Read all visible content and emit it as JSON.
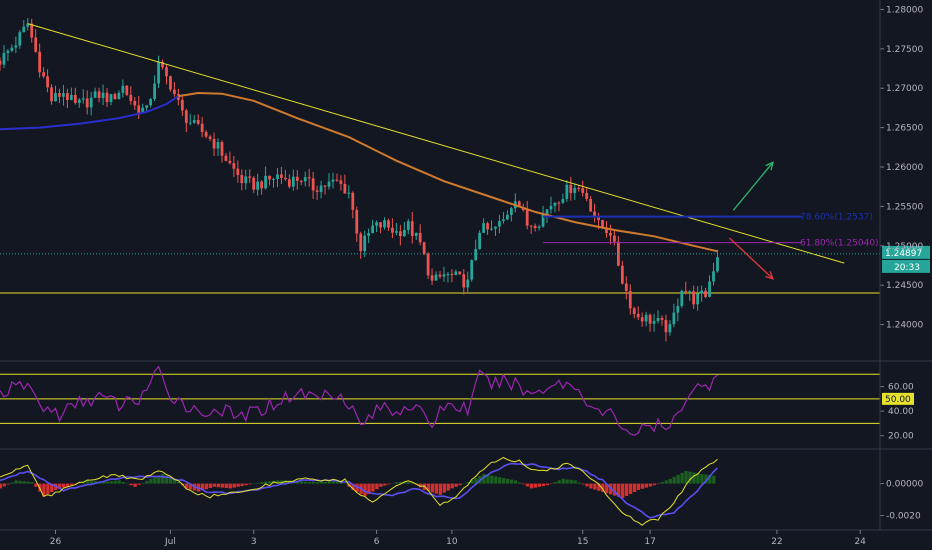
{
  "chart_data": [
    {
      "panel": "price",
      "type": "candlestick",
      "y_ticks": [
        "1.28000",
        "1.27500",
        "1.27000",
        "1.26500",
        "1.26000",
        "1.25500",
        "1.25000",
        "1.24500",
        "1.24000"
      ],
      "y_tick_values": [
        1.28,
        1.275,
        1.27,
        1.265,
        1.26,
        1.255,
        1.25,
        1.245,
        1.24
      ],
      "ylim": [
        1.2355,
        1.2812
      ],
      "x_ticks": [
        "26",
        "Jul",
        "3",
        "6",
        "10",
        "15",
        "17",
        "22",
        "24"
      ],
      "x_tick_index": [
        14,
        43,
        64,
        95,
        114,
        147,
        164,
        196,
        217
      ],
      "x_index_range": [
        0,
        222
      ],
      "last_price": "1.24897",
      "last_price_value": 1.24897,
      "countdown": "20:33",
      "close_path": [
        [
          0,
          1.2735
        ],
        [
          4,
          1.2758
        ],
        [
          7,
          1.2782
        ],
        [
          10,
          1.2728
        ],
        [
          13,
          1.2685
        ],
        [
          16,
          1.2695
        ],
        [
          19,
          1.2678
        ],
        [
          22,
          1.2683
        ],
        [
          25,
          1.2692
        ],
        [
          28,
          1.2686
        ],
        [
          31,
          1.2702
        ],
        [
          34,
          1.2677
        ],
        [
          37,
          1.2671
        ],
        [
          40,
          1.2729
        ],
        [
          43,
          1.2705
        ],
        [
          46,
          1.2668
        ],
        [
          49,
          1.2652
        ],
        [
          52,
          1.2641
        ],
        [
          55,
          1.2625
        ],
        [
          58,
          1.2603
        ],
        [
          61,
          1.2583
        ],
        [
          64,
          1.2577
        ],
        [
          67,
          1.2581
        ],
        [
          70,
          1.2589
        ],
        [
          73,
          1.2583
        ],
        [
          76,
          1.2586
        ],
        [
          79,
          1.2574
        ],
        [
          82,
          1.2577
        ],
        [
          85,
          1.2581
        ],
        [
          88,
          1.2568
        ],
        [
          91,
          1.2497
        ],
        [
          94,
          1.2523
        ],
        [
          97,
          1.2527
        ],
        [
          100,
          1.2517
        ],
        [
          103,
          1.2525
        ],
        [
          106,
          1.2502
        ],
        [
          109,
          1.2453
        ],
        [
          112,
          1.2463
        ],
        [
          115,
          1.246
        ],
        [
          118,
          1.2452
        ],
        [
          121,
          1.2522
        ],
        [
          124,
          1.2518
        ],
        [
          127,
          1.2532
        ],
        [
          130,
          1.2563
        ],
        [
          133,
          1.2527
        ],
        [
          136,
          1.2532
        ],
        [
          139,
          1.2553
        ],
        [
          142,
          1.2566
        ],
        [
          145,
          1.2578
        ],
        [
          148,
          1.2562
        ],
        [
          151,
          1.2526
        ],
        [
          154,
          1.2518
        ],
        [
          157,
          1.2457
        ],
        [
          160,
          1.2413
        ],
        [
          163,
          1.2408
        ],
        [
          166,
          1.2402
        ],
        [
          169,
          1.2393
        ],
        [
          172,
          1.2448
        ],
        [
          175,
          1.2432
        ],
        [
          178,
          1.2438
        ],
        [
          181,
          1.2489
        ]
      ],
      "overlays": [
        {
          "name": "ma_blue",
          "color": "#2a2ecd",
          "points": [
            [
              0,
              1.2648
            ],
            [
              10,
              1.265
            ],
            [
              20,
              1.2655
            ],
            [
              30,
              1.2662
            ],
            [
              37,
              1.267
            ],
            [
              42,
              1.268
            ],
            [
              45,
              1.269
            ]
          ]
        },
        {
          "name": "ma_orange",
          "color": "#d07a2e",
          "points": [
            [
              45,
              1.269
            ],
            [
              50,
              1.2694
            ],
            [
              56,
              1.2693
            ],
            [
              64,
              1.2684
            ],
            [
              75,
              1.2662
            ],
            [
              88,
              1.2638
            ],
            [
              100,
              1.2608
            ],
            [
              112,
              1.2582
            ],
            [
              125,
              1.256
            ],
            [
              135,
              1.2543
            ],
            [
              145,
              1.253
            ],
            [
              155,
              1.252
            ],
            [
              165,
              1.2512
            ],
            [
              175,
              1.25
            ],
            [
              181,
              1.2493
            ]
          ]
        },
        {
          "name": "trendline",
          "color": "#e6e22b",
          "points": [
            [
              7,
              1.2782
            ],
            [
              213,
              1.2478
            ]
          ]
        },
        {
          "name": "support",
          "color": "#e6e22b",
          "points": [
            [
              0,
              1.244
            ],
            [
              222,
              1.244
            ]
          ]
        }
      ],
      "fib_levels": [
        {
          "label": "78.60%(1.2537)",
          "value": 1.2537,
          "color": "#1c2fb6",
          "from_index": 137
        },
        {
          "label": "61.80%(1.25040)",
          "value": 1.2504,
          "color": "#9c27b0",
          "from_index": 137
        }
      ],
      "arrows": [
        {
          "direction": "up",
          "color": "#2db56b",
          "from": [
            185,
            1.2545
          ],
          "to": [
            195,
            1.2606
          ]
        },
        {
          "direction": "down",
          "color": "#e4363c",
          "from": [
            184,
            1.251
          ],
          "to": [
            195,
            1.2458
          ]
        }
      ]
    },
    {
      "panel": "rsi",
      "type": "line",
      "y_ticks": [
        "60.00",
        "40.00",
        "20.00"
      ],
      "y_tick_values": [
        60,
        40,
        20
      ],
      "current_label": "50.00",
      "current_value": 50,
      "ylim": [
        10,
        80
      ],
      "levels": [
        70,
        50,
        30
      ],
      "line_color": "#9c27b0",
      "values_path": [
        [
          0,
          55
        ],
        [
          7,
          62
        ],
        [
          10,
          45
        ],
        [
          15,
          37
        ],
        [
          20,
          47
        ],
        [
          25,
          52
        ],
        [
          30,
          45
        ],
        [
          35,
          50
        ],
        [
          40,
          72
        ],
        [
          42,
          55
        ],
        [
          45,
          50
        ],
        [
          50,
          38
        ],
        [
          55,
          42
        ],
        [
          60,
          35
        ],
        [
          65,
          40
        ],
        [
          70,
          48
        ],
        [
          75,
          55
        ],
        [
          80,
          52
        ],
        [
          85,
          56
        ],
        [
          88,
          47
        ],
        [
          91,
          28
        ],
        [
          94,
          38
        ],
        [
          97,
          44
        ],
        [
          100,
          40
        ],
        [
          103,
          46
        ],
        [
          106,
          38
        ],
        [
          109,
          30
        ],
        [
          112,
          45
        ],
        [
          115,
          44
        ],
        [
          118,
          42
        ],
        [
          121,
          68
        ],
        [
          124,
          62
        ],
        [
          127,
          64
        ],
        [
          130,
          63
        ],
        [
          133,
          54
        ],
        [
          136,
          57
        ],
        [
          139,
          62
        ],
        [
          142,
          63
        ],
        [
          145,
          60
        ],
        [
          148,
          50
        ],
        [
          151,
          38
        ],
        [
          154,
          38
        ],
        [
          157,
          28
        ],
        [
          160,
          22
        ],
        [
          163,
          26
        ],
        [
          166,
          28
        ],
        [
          169,
          24
        ],
        [
          172,
          46
        ],
        [
          175,
          60
        ],
        [
          178,
          58
        ],
        [
          181,
          72
        ]
      ]
    },
    {
      "panel": "macd",
      "type": "line",
      "y_ticks": [
        "0.00000",
        "-0.0020"
      ],
      "y_tick_values": [
        0,
        -0.002
      ],
      "ylim": [
        -0.0029,
        0.0021
      ],
      "histogram": [
        [
          0,
          -0.0003
        ],
        [
          4,
          0.0002
        ],
        [
          8,
          0.0001
        ],
        [
          11,
          -0.0008
        ],
        [
          14,
          -0.0004
        ],
        [
          18,
          -0.0001
        ],
        [
          22,
          0.0002
        ],
        [
          26,
          0.0001
        ],
        [
          30,
          0.0002
        ],
        [
          34,
          -0.0002
        ],
        [
          38,
          0.0003
        ],
        [
          41,
          0.0006
        ],
        [
          44,
          0.0003
        ],
        [
          47,
          -0.0003
        ],
        [
          50,
          -0.0005
        ],
        [
          54,
          -0.0002
        ],
        [
          58,
          -0.0003
        ],
        [
          62,
          -0.0001
        ],
        [
          66,
          0.0001
        ],
        [
          70,
          0.0002
        ],
        [
          74,
          0.0002
        ],
        [
          78,
          0.0001
        ],
        [
          82,
          0.0001
        ],
        [
          86,
          0.0002
        ],
        [
          89,
          -0.0004
        ],
        [
          92,
          -0.0008
        ],
        [
          96,
          -0.0002
        ],
        [
          100,
          0.0001
        ],
        [
          104,
          0.0001
        ],
        [
          107,
          -0.0004
        ],
        [
          111,
          -0.0007
        ],
        [
          114,
          -0.0003
        ],
        [
          118,
          0.0001
        ],
        [
          122,
          0.0006
        ],
        [
          126,
          0.0004
        ],
        [
          130,
          0.0002
        ],
        [
          134,
          -0.0003
        ],
        [
          138,
          -0.0001
        ],
        [
          142,
          0.0003
        ],
        [
          145,
          0.0002
        ],
        [
          149,
          -0.0003
        ],
        [
          153,
          -0.0006
        ],
        [
          157,
          -0.0009
        ],
        [
          161,
          -0.0004
        ],
        [
          165,
          -0.0001
        ],
        [
          169,
          0.0003
        ],
        [
          173,
          0.0008
        ],
        [
          177,
          0.0006
        ],
        [
          180,
          0.0005
        ]
      ],
      "macd_path": [
        [
          0,
          0.0004
        ],
        [
          7,
          0.0012
        ],
        [
          11,
          -0.0008
        ],
        [
          14,
          -0.0006
        ],
        [
          20,
          0.0001
        ],
        [
          25,
          0.0004
        ],
        [
          30,
          0.0005
        ],
        [
          35,
          0.0002
        ],
        [
          40,
          0.0008
        ],
        [
          44,
          0.0003
        ],
        [
          48,
          -0.0005
        ],
        [
          53,
          -0.0008
        ],
        [
          58,
          -0.0006
        ],
        [
          64,
          -0.0003
        ],
        [
          70,
          0.0001
        ],
        [
          76,
          0.0003
        ],
        [
          82,
          0.0002
        ],
        [
          87,
          0.0002
        ],
        [
          90,
          -0.0006
        ],
        [
          94,
          -0.0012
        ],
        [
          98,
          -0.0004
        ],
        [
          103,
          0.0001
        ],
        [
          107,
          -0.0002
        ],
        [
          111,
          -0.0014
        ],
        [
          115,
          -0.0008
        ],
        [
          119,
          0.0002
        ],
        [
          123,
          0.0012
        ],
        [
          127,
          0.0016
        ],
        [
          131,
          0.0014
        ],
        [
          135,
          0.0008
        ],
        [
          139,
          0.0009
        ],
        [
          143,
          0.0012
        ],
        [
          146,
          0.001
        ],
        [
          150,
          0.0002
        ],
        [
          154,
          -0.001
        ],
        [
          158,
          -0.002
        ],
        [
          162,
          -0.0025
        ],
        [
          166,
          -0.0022
        ],
        [
          170,
          -0.0012
        ],
        [
          174,
          0.0002
        ],
        [
          178,
          0.001
        ],
        [
          181,
          0.0016
        ]
      ],
      "signal_path": [
        [
          0,
          0.0002
        ],
        [
          7,
          0.0008
        ],
        [
          12,
          0.0001
        ],
        [
          16,
          -0.0004
        ],
        [
          22,
          -0.0001
        ],
        [
          28,
          0.0003
        ],
        [
          34,
          0.0004
        ],
        [
          40,
          0.0005
        ],
        [
          46,
          0.0002
        ],
        [
          52,
          -0.0005
        ],
        [
          58,
          -0.0006
        ],
        [
          64,
          -0.0004
        ],
        [
          70,
          -0.0001
        ],
        [
          76,
          0.0002
        ],
        [
          82,
          0.0002
        ],
        [
          88,
          0.0001
        ],
        [
          93,
          -0.0006
        ],
        [
          99,
          -0.0007
        ],
        [
          105,
          -0.0003
        ],
        [
          110,
          -0.0008
        ],
        [
          116,
          -0.0009
        ],
        [
          122,
          0.0004
        ],
        [
          128,
          0.0012
        ],
        [
          134,
          0.0012
        ],
        [
          140,
          0.0009
        ],
        [
          146,
          0.001
        ],
        [
          152,
          0.0002
        ],
        [
          158,
          -0.0012
        ],
        [
          164,
          -0.0021
        ],
        [
          170,
          -0.0018
        ],
        [
          176,
          -0.0004
        ],
        [
          181,
          0.001
        ]
      ],
      "macd_color": "#e6e22b",
      "signal_color": "#5a4ff0"
    }
  ]
}
